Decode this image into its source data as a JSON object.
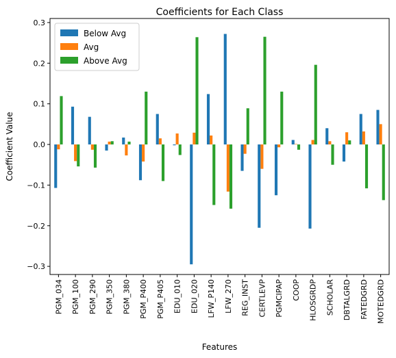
{
  "chart_data": {
    "type": "bar",
    "title": "Coefficients for Each Class",
    "xlabel": "Features",
    "ylabel": "Coefficient Value",
    "ylim": [
      -0.32,
      0.31
    ],
    "yticks": [
      -0.3,
      -0.2,
      -0.1,
      0.0,
      0.1,
      0.2,
      0.3
    ],
    "ytick_labels": [
      "−0.3",
      "−0.2",
      "−0.1",
      "0.0",
      "0.1",
      "0.2",
      "0.3"
    ],
    "grid": false,
    "legend_position": "top-left",
    "categories": [
      "PGM_034",
      "PGM_100",
      "PGM_290",
      "PGM_350",
      "PGM_380",
      "PGM_P400",
      "PGM_P405",
      "EDU_010",
      "EDU_020",
      "LFW_P140",
      "LFW_270",
      "REG_INST",
      "CERTLEVP",
      "PGMCIPAP",
      "COOP",
      "HLOSGRDP",
      "SCHOLAR",
      "DBTALGRD",
      "FATEDGRD",
      "MOTEDGRD"
    ],
    "series": [
      {
        "name": "Below Avg",
        "color": "#1f77b4",
        "values": [
          -0.107,
          0.093,
          0.068,
          -0.015,
          0.017,
          -0.088,
          0.075,
          -0.002,
          -0.295,
          0.124,
          0.272,
          -0.065,
          -0.205,
          -0.125,
          0.011,
          -0.207,
          0.04,
          -0.042,
          0.075,
          0.085
        ]
      },
      {
        "name": "Avg",
        "color": "#ff7f0e",
        "values": [
          -0.012,
          -0.041,
          -0.013,
          0.007,
          -0.027,
          -0.042,
          0.015,
          0.027,
          0.029,
          0.022,
          -0.116,
          -0.023,
          -0.06,
          -0.007,
          0.001,
          0.011,
          0.008,
          0.03,
          0.032,
          0.05
        ]
      },
      {
        "name": "Above Avg",
        "color": "#2ca02c",
        "values": [
          0.119,
          -0.054,
          -0.057,
          0.008,
          0.007,
          0.13,
          -0.09,
          -0.026,
          0.264,
          -0.149,
          -0.158,
          0.089,
          0.265,
          0.13,
          -0.013,
          0.196,
          -0.05,
          0.01,
          -0.108,
          -0.137
        ]
      }
    ]
  }
}
